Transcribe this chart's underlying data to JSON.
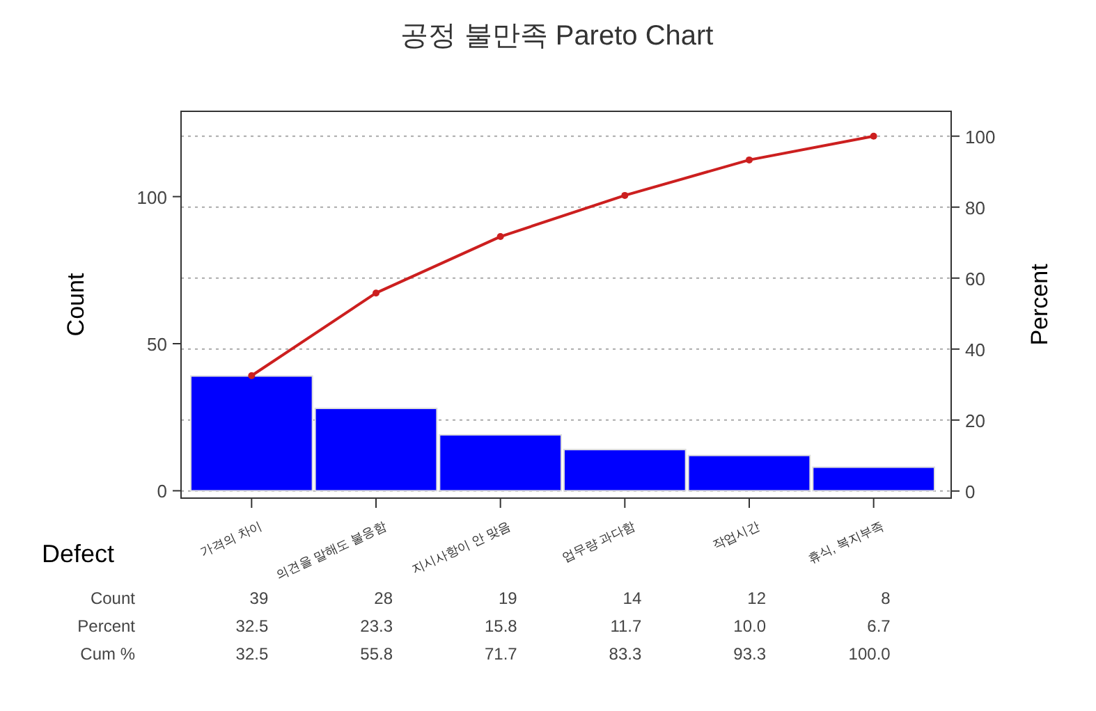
{
  "chart_data": {
    "type": "bar",
    "title": "공정 불만족 Pareto Chart",
    "xlabel": "Defect",
    "ylabel": "Count",
    "y2label": "Percent",
    "categories": [
      "가격의 차이",
      "의견을 말해도 불응함",
      "지시사항이 안 맞음",
      "업무량 과다함",
      "작업시간",
      "휴식, 복지부족"
    ],
    "series": [
      {
        "color": "#0000ff",
        "values": [
          39,
          28,
          19,
          14,
          12,
          8
        ],
        "value_labels": [
          "39",
          "28",
          "19",
          "14",
          "12",
          "8"
        ]
      },
      {
        "type": "line",
        "axis": "y2",
        "color": "#cc1f1f",
        "values": [
          32.5,
          55.8,
          71.7,
          83.3,
          93.3,
          100.0
        ],
        "value_labels": [
          "32.5",
          "55.8",
          "71.7",
          "83.3",
          "93.3",
          "100.0"
        ]
      }
    ],
    "annotations": [
      "Count",
      "Percent",
      "Cum %",
      "32.5",
      "23.3",
      "15.8",
      "11.7",
      "10.0",
      "6.7"
    ],
    "marker": "circle",
    "line_style": "solid",
    "grid": "y",
    "ylim": [
      -2.5,
      129
    ],
    "yticks": [
      0,
      50,
      100
    ],
    "y2lim": [
      -2,
      107
    ],
    "y2ticks": [
      0,
      20,
      40,
      60,
      80,
      100
    ]
  }
}
